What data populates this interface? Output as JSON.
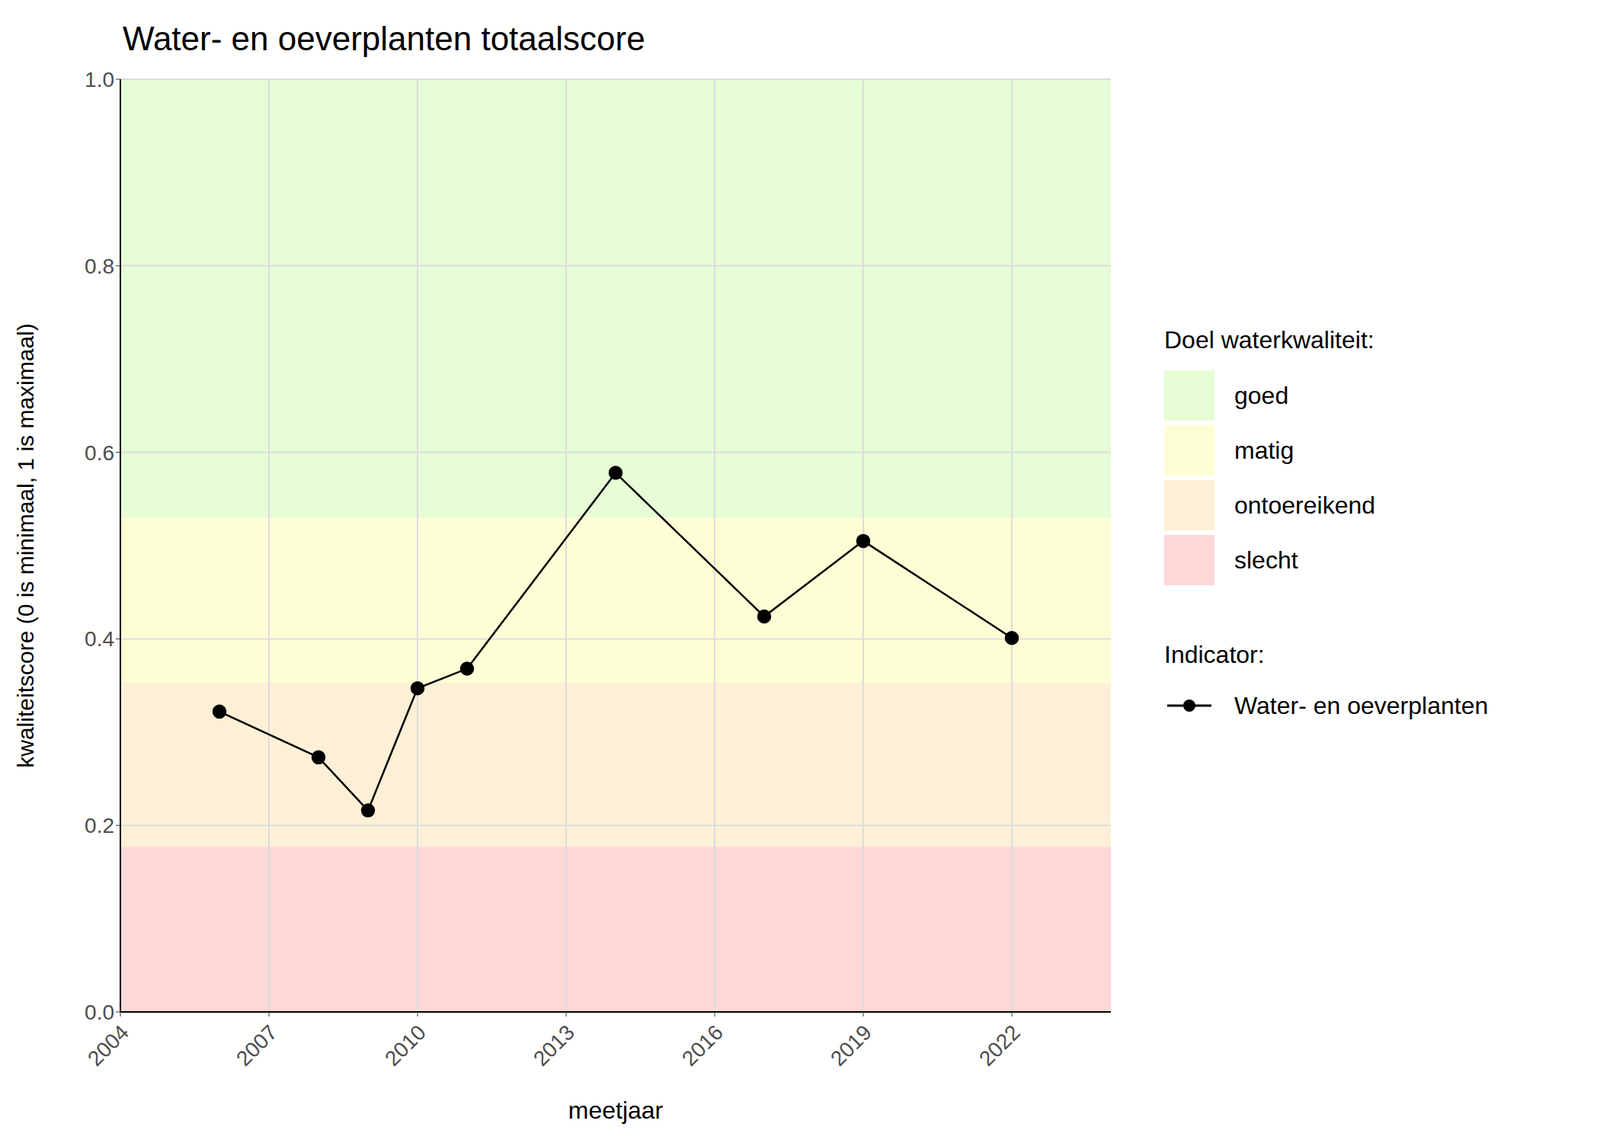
{
  "chart_data": {
    "type": "line",
    "title": "Water- en oeverplanten totaalscore",
    "x_label": "meetjaar",
    "y_label": "kwaliteitscore (0 is minimaal, 1 is maximaal)",
    "x": [
      2006,
      2008,
      2009,
      2010,
      2011,
      2014,
      2017,
      2019,
      2022
    ],
    "series": [
      {
        "name": "Water- en oeverplanten",
        "color": "#000000",
        "marker": "circle",
        "line_style": "solid",
        "values": [
          0.322,
          0.273,
          0.216,
          0.347,
          0.368,
          0.578,
          0.424,
          0.505,
          0.401
        ]
      }
    ],
    "xlim": [
      2004,
      2024
    ],
    "xticks": [
      2004,
      2007,
      2010,
      2013,
      2016,
      2019,
      2022
    ],
    "ylim": [
      0,
      1
    ],
    "yticks": [
      {
        "value": 0,
        "label": "0.0"
      },
      0.2,
      0.4,
      0.6,
      0.8,
      {
        "value": 1,
        "label": "1.0"
      }
    ],
    "grid": true,
    "legend": "right",
    "band_legend_title": "Doel waterkwaliteit:",
    "series_legend_title": "Indicator:",
    "bands": [
      {
        "name": "goed",
        "color": "#e6fdd6",
        "range": [
          0.53,
          1
        ]
      },
      {
        "name": "matig",
        "color": "#fefed6",
        "range": [
          0.353,
          0.53
        ]
      },
      {
        "name": "ontoereikend",
        "color": "#fdf0d6",
        "range": [
          0.177,
          0.353
        ]
      },
      {
        "name": "slecht",
        "color": "#fed7d7",
        "range": [
          0,
          0.177
        ]
      }
    ]
  }
}
